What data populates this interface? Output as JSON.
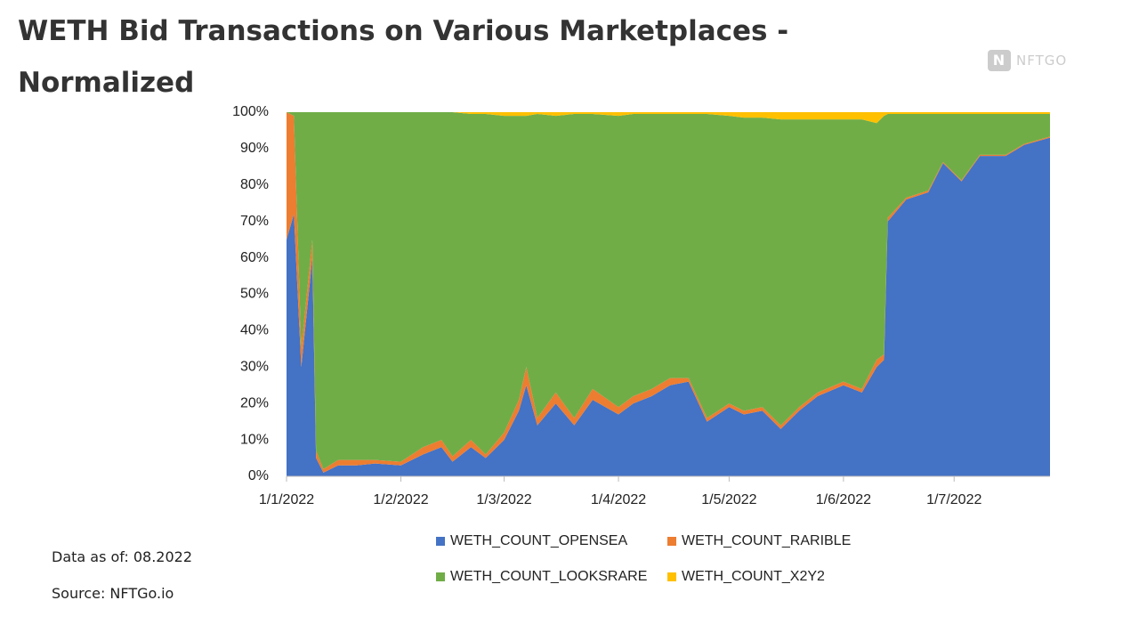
{
  "title": "WETH Bid Transactions on Various Marketplaces - Normalized",
  "logo": "NFTGO",
  "notes": [
    "Data as of: 08.2022",
    "Source: NFTGo.io"
  ],
  "chart_data": {
    "type": "stacked_area",
    "x": [
      "2022-01-01",
      "2022-01-03",
      "2022-01-05",
      "2022-01-08",
      "2022-01-09",
      "2022-01-11",
      "2022-01-15",
      "2022-01-20",
      "2022-01-25",
      "2022-02-01",
      "2022-02-07",
      "2022-02-12",
      "2022-02-15",
      "2022-02-20",
      "2022-02-24",
      "2022-03-01",
      "2022-03-05",
      "2022-03-07",
      "2022-03-10",
      "2022-03-15",
      "2022-03-20",
      "2022-03-25",
      "2022-04-01",
      "2022-04-05",
      "2022-04-10",
      "2022-04-15",
      "2022-04-20",
      "2022-04-25",
      "2022-05-01",
      "2022-05-05",
      "2022-05-10",
      "2022-05-15",
      "2022-05-20",
      "2022-05-25",
      "2022-06-01",
      "2022-06-06",
      "2022-06-10",
      "2022-06-12",
      "2022-06-13",
      "2022-06-18",
      "2022-06-24",
      "2022-06-28",
      "2022-07-03",
      "2022-07-08",
      "2022-07-15",
      "2022-07-20",
      "2022-07-27"
    ],
    "series": [
      {
        "name": "WETH_COUNT_OPENSEA",
        "color": "#4472c4",
        "values": [
          65,
          72,
          30,
          60,
          5,
          1,
          3,
          3,
          3.5,
          3,
          6,
          8,
          4,
          8,
          5,
          10,
          18,
          25,
          14,
          20,
          14,
          21,
          17,
          20,
          22,
          25,
          26,
          15,
          19,
          17,
          18,
          13,
          18,
          22,
          25,
          23,
          30,
          32,
          70,
          76,
          78,
          86,
          81,
          88,
          88,
          91,
          93
        ]
      },
      {
        "name": "WETH_COUNT_RARIBLE",
        "color": "#ed7d31",
        "values": [
          35,
          27,
          5,
          5,
          2,
          1,
          1.5,
          1.5,
          1,
          1,
          2,
          2,
          1.5,
          2,
          1,
          2,
          3,
          5,
          2,
          3,
          2,
          3,
          2,
          2,
          2,
          2,
          1,
          1,
          1,
          1,
          1,
          1,
          1,
          1,
          1,
          1,
          2,
          1.5,
          1,
          0.5,
          0.5,
          0.3,
          0.3,
          0.3,
          0.3,
          0.3,
          0.3
        ]
      },
      {
        "name": "WETH_COUNT_LOOKSRARE",
        "color": "#70ad47",
        "values": [
          0,
          1,
          65,
          35,
          93,
          98,
          95.5,
          95.5,
          95.5,
          96,
          92,
          90,
          94.5,
          89.5,
          93.5,
          87,
          78,
          69,
          83.5,
          76,
          83.5,
          75.5,
          80,
          77.5,
          75.5,
          72.5,
          72.5,
          83.5,
          79,
          80.5,
          79.5,
          84,
          79,
          75,
          72,
          74,
          65,
          65.5,
          28.5,
          23,
          21,
          13.2,
          18.2,
          11.2,
          11.2,
          8.2,
          6.2
        ]
      },
      {
        "name": "WETH_COUNT_X2Y2",
        "color": "#ffc000",
        "values": [
          0,
          0,
          0,
          0,
          0,
          0,
          0,
          0,
          0,
          0,
          0,
          0,
          0,
          0.5,
          0.5,
          1,
          1,
          1,
          0.5,
          1,
          0.5,
          0.5,
          1,
          0.5,
          0.5,
          0.5,
          0.5,
          0.5,
          1,
          1.5,
          1.5,
          2,
          2,
          2,
          2,
          2,
          3,
          1,
          0.5,
          0.5,
          0.5,
          0.5,
          0.5,
          0.5,
          0.5,
          0.5,
          0.5
        ]
      }
    ],
    "xlim": [
      "2022-01-01",
      "2022-07-27"
    ],
    "xticks": [
      {
        "value": "2022-01-01",
        "label": "1/1/2022"
      },
      {
        "value": "2022-02-01",
        "label": "1/2/2022"
      },
      {
        "value": "2022-03-01",
        "label": "1/3/2022"
      },
      {
        "value": "2022-04-01",
        "label": "1/4/2022"
      },
      {
        "value": "2022-05-01",
        "label": "1/5/2022"
      },
      {
        "value": "2022-06-01",
        "label": "1/6/2022"
      },
      {
        "value": "2022-07-01",
        "label": "1/7/2022"
      }
    ],
    "ylim": [
      0,
      100
    ],
    "yticks": [
      {
        "value": 0,
        "label": "0%"
      },
      {
        "value": 10,
        "label": "10%"
      },
      {
        "value": 20,
        "label": "20%"
      },
      {
        "value": 30,
        "label": "30%"
      },
      {
        "value": 40,
        "label": "40%"
      },
      {
        "value": 50,
        "label": "50%"
      },
      {
        "value": 60,
        "label": "60%"
      },
      {
        "value": 70,
        "label": "70%"
      },
      {
        "value": 80,
        "label": "80%"
      },
      {
        "value": 90,
        "label": "90%"
      },
      {
        "value": 100,
        "label": "100%"
      }
    ],
    "grid": false,
    "legend": "bottom"
  }
}
